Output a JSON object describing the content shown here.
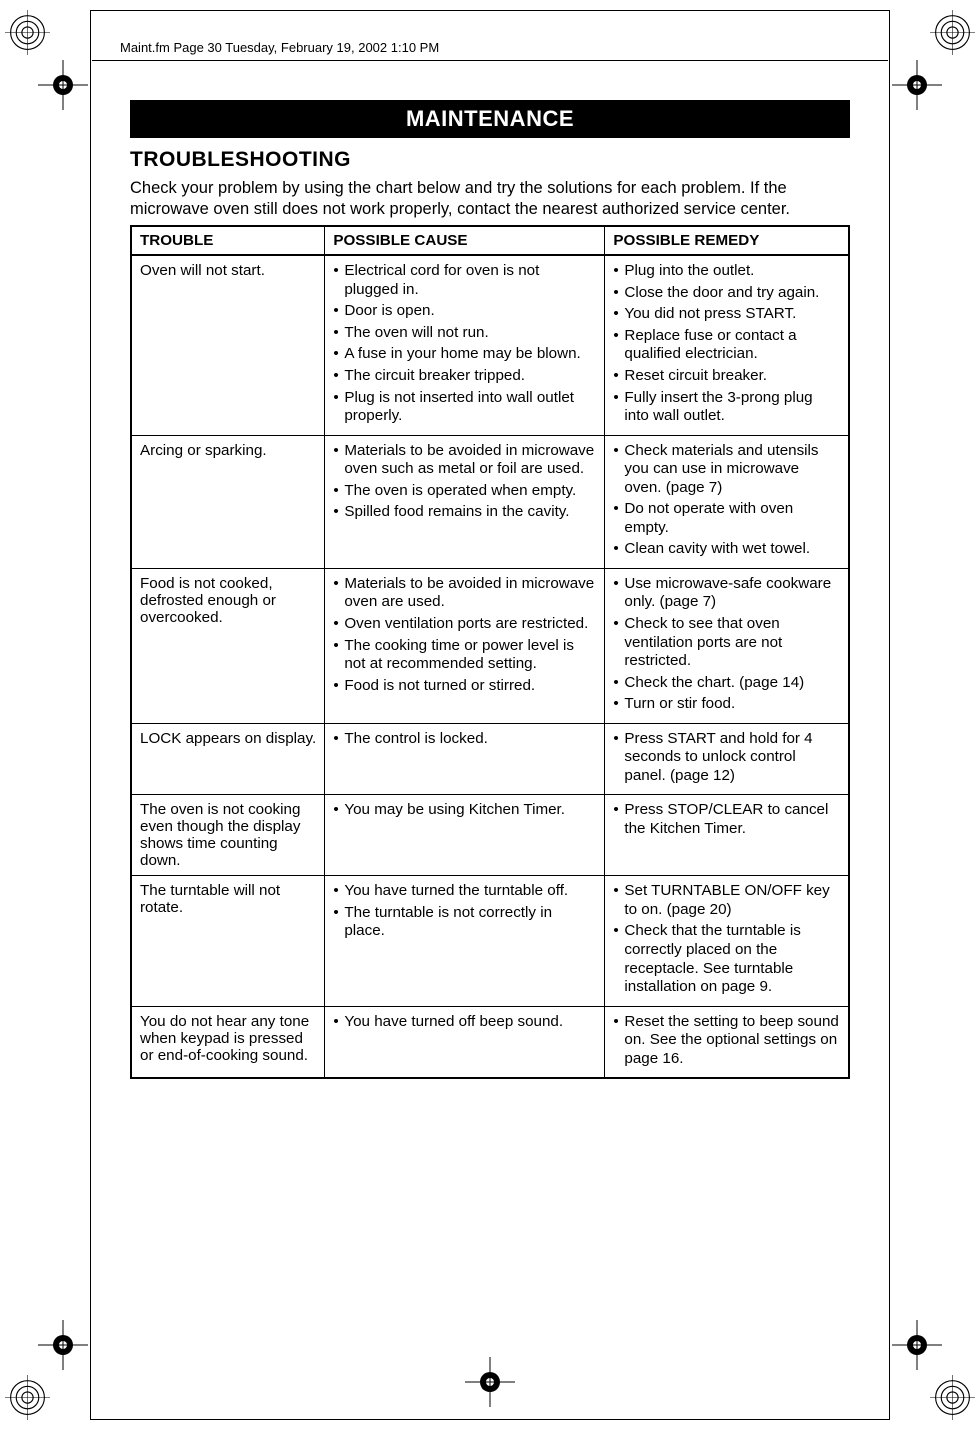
{
  "header_path": "Maint.fm  Page 30  Tuesday, February 19, 2002  1:10 PM",
  "banner": "MAINTENANCE",
  "section_title": "TROUBLESHOOTING",
  "intro": "Check your problem by using the chart below and try the solutions for each problem. If the microwave oven still does not work properly, contact the nearest authorized service center.",
  "columns": {
    "trouble": "TROUBLE",
    "cause": "POSSIBLE CAUSE",
    "remedy": "POSSIBLE REMEDY"
  },
  "rows": [
    {
      "trouble": "Oven will not start.",
      "pairs": [
        {
          "cause": "Electrical cord for oven is not plugged in.",
          "remedy": "Plug into the outlet."
        },
        {
          "cause": "Door is open.",
          "remedy": "Close the door and try again."
        },
        {
          "cause": "The oven will not run.",
          "remedy": "You did not press START."
        },
        {
          "cause": "A fuse in your home may be blown.",
          "remedy": "Replace fuse or contact a qualified electrician."
        },
        {
          "cause": "The circuit breaker tripped.",
          "remedy": "Reset circuit breaker."
        },
        {
          "cause": "Plug is not inserted into wall outlet properly.",
          "remedy": "Fully insert the 3-prong plug into wall outlet."
        }
      ]
    },
    {
      "trouble": "Arcing or sparking.",
      "pairs": [
        {
          "cause": "Materials to be avoided in microwave oven such as metal or foil are used.",
          "remedy": "Check materials and utensils you can use in microwave oven. (page 7)"
        },
        {
          "cause": "The oven is operated when empty.",
          "remedy": "Do not operate with oven empty."
        },
        {
          "cause": "Spilled food remains in the cavity.",
          "remedy": "Clean cavity with wet towel."
        }
      ]
    },
    {
      "trouble": "Food is not cooked, defrosted enough or overcooked.",
      "pairs": [
        {
          "cause": "Materials to be avoided in microwave oven are used.",
          "remedy": "Use microwave-safe cookware only. (page 7)"
        },
        {
          "cause": "Oven ventilation ports are restricted.",
          "remedy": "Check to see that oven ventilation ports are not restricted."
        },
        {
          "cause": "The cooking time or power level is not at recommended setting.",
          "remedy": "Check the chart. (page 14)"
        },
        {
          "cause": "Food is not turned or stirred.",
          "remedy": "Turn or stir food."
        }
      ]
    },
    {
      "trouble": "LOCK appears on display.",
      "pairs": [
        {
          "cause": "The control is locked.",
          "remedy": "Press START and hold for 4 seconds to unlock control panel. (page 12)"
        }
      ]
    },
    {
      "trouble": "The oven is not cooking even though the display shows time counting down.",
      "pairs": [
        {
          "cause": "You may be using Kitchen Timer.",
          "remedy": "Press STOP/CLEAR to cancel the Kitchen Timer."
        }
      ]
    },
    {
      "trouble": "The turntable will not rotate.",
      "pairs": [
        {
          "cause": "You have turned the turntable off.",
          "remedy": "Set TURNTABLE ON/OFF key to on. (page 20)"
        },
        {
          "cause": "The turntable is not correctly in place.",
          "remedy": "Check that the turntable is correctly placed on the receptacle. See turntable installation on page 9."
        }
      ]
    },
    {
      "trouble": "You do not hear any tone when keypad is pressed or end-of-cooking sound.",
      "pairs": [
        {
          "cause": "You have turned off beep sound.",
          "remedy": "Reset the setting to beep sound on. See the optional settings on page 16."
        }
      ]
    }
  ],
  "page_number": "30"
}
